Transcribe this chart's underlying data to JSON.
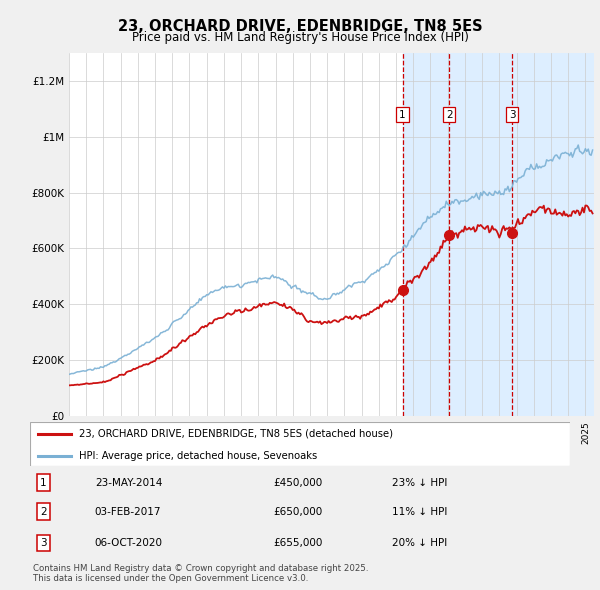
{
  "title1": "23, ORCHARD DRIVE, EDENBRIDGE, TN8 5ES",
  "title2": "Price paid vs. HM Land Registry's House Price Index (HPI)",
  "ylabel_ticks": [
    "£0",
    "£200K",
    "£400K",
    "£600K",
    "£800K",
    "£1M",
    "£1.2M"
  ],
  "ytick_vals": [
    0,
    200000,
    400000,
    600000,
    800000,
    1000000,
    1200000
  ],
  "ylim": [
    0,
    1300000
  ],
  "xlim_start": 1995.0,
  "xlim_end": 2025.5,
  "sale_dates_decimal": [
    2014.38,
    2017.08,
    2020.75
  ],
  "sale_prices": [
    450000,
    650000,
    655000
  ],
  "sale_labels": [
    "1",
    "2",
    "3"
  ],
  "vline_color": "#cc0000",
  "shade_color": "#ddeeff",
  "legend_line1": "23, ORCHARD DRIVE, EDENBRIDGE, TN8 5ES (detached house)",
  "legend_line2": "HPI: Average price, detached house, Sevenoaks",
  "line_color_red": "#cc1111",
  "line_color_blue": "#7ab0d4",
  "table_rows": [
    {
      "num": "1",
      "date": "23-MAY-2014",
      "price": "£450,000",
      "hpi": "23% ↓ HPI"
    },
    {
      "num": "2",
      "date": "03-FEB-2017",
      "price": "£650,000",
      "hpi": "11% ↓ HPI"
    },
    {
      "num": "3",
      "date": "06-OCT-2020",
      "price": "£655,000",
      "hpi": "20% ↓ HPI"
    }
  ],
  "footer": "Contains HM Land Registry data © Crown copyright and database right 2025.\nThis data is licensed under the Open Government Licence v3.0.",
  "bg_color": "#f0f0f0"
}
